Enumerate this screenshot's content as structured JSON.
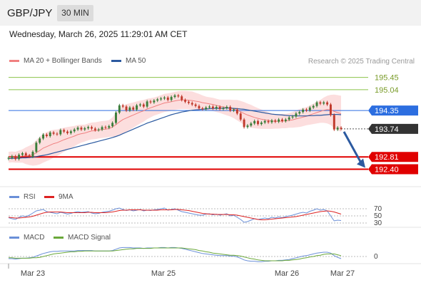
{
  "header": {
    "pair": "GBP/JPY",
    "timeframe": "30 MIN"
  },
  "datetime": "Wednesday, March 26, 2025 11:29:01 AM CET",
  "legend": {
    "ma20": "MA 20 + Bollinger Bands",
    "ma50": "MA 50",
    "credit": "Research © 2025 Trading Central"
  },
  "colors": {
    "up": "#3a7d3a",
    "down": "#c0392b",
    "ma50": "#2c5aa0",
    "ma20": "#f08080",
    "band": "#fbd3d3",
    "resistance": "#8bc34a",
    "support": "#e00000",
    "pivot": "#2c6ee0",
    "current": "#333333"
  },
  "chart_data": [
    {
      "type": "line",
      "title": "",
      "ylim": [
        192.2,
        195.7
      ],
      "x_labels": [
        "Mar 23",
        "Mar 25",
        "Mar 26",
        "Mar 27"
      ],
      "levels": [
        {
          "name": "R2",
          "value": 195.45,
          "label": "195.45",
          "kind": "resistance"
        },
        {
          "name": "R1",
          "value": 195.04,
          "label": "195.04",
          "kind": "resistance"
        },
        {
          "name": "pivot",
          "value": 194.35,
          "label": "194.35",
          "kind": "pivot"
        },
        {
          "name": "last",
          "value": 193.74,
          "label": "193.74",
          "kind": "current"
        },
        {
          "name": "S1",
          "value": 192.81,
          "label": "192.81",
          "kind": "support"
        },
        {
          "name": "S2",
          "value": 192.4,
          "label": "192.40",
          "kind": "support"
        }
      ],
      "close": [
        192.78,
        192.83,
        192.74,
        192.88,
        192.93,
        192.86,
        192.82,
        192.98,
        193.28,
        193.42,
        193.55,
        193.5,
        193.62,
        193.58,
        193.56,
        193.7,
        193.65,
        193.6,
        193.66,
        193.72,
        193.78,
        193.72,
        193.76,
        193.8,
        193.75,
        193.7,
        193.72,
        193.8,
        193.78,
        193.83,
        193.94,
        194.28,
        194.52,
        194.48,
        194.35,
        194.45,
        194.38,
        194.52,
        194.55,
        194.48,
        194.65,
        194.62,
        194.68,
        194.72,
        194.75,
        194.78,
        194.7,
        194.8,
        194.85,
        194.82,
        194.7,
        194.64,
        194.6,
        194.55,
        194.5,
        194.42,
        194.4,
        194.45,
        194.48,
        194.42,
        194.47,
        194.4,
        194.43,
        194.47,
        194.35,
        194.38,
        194.25,
        194.05,
        193.8,
        193.85,
        193.92,
        194.0,
        193.9,
        193.95,
        194.0,
        193.96,
        194.02,
        193.98,
        194.05,
        194.0,
        194.05,
        194.12,
        194.15,
        194.25,
        194.3,
        194.38,
        194.35,
        194.45,
        194.5,
        194.62,
        194.58,
        194.62,
        194.55,
        194.2,
        193.72,
        193.78,
        193.74
      ],
      "series": [
        {
          "name": "MA 20",
          "values": [
            192.8,
            192.81,
            192.8,
            192.82,
            192.84,
            192.85,
            192.86,
            192.88,
            192.95,
            193.02,
            193.1,
            193.15,
            193.2,
            193.25,
            193.28,
            193.33,
            193.38,
            193.42,
            193.46,
            193.5,
            193.55,
            193.58,
            193.6,
            193.64,
            193.67,
            193.68,
            193.7,
            193.72,
            193.73,
            193.75,
            193.8,
            193.88,
            193.97,
            194.05,
            194.1,
            194.15,
            194.2,
            194.25,
            194.3,
            194.34,
            194.4,
            194.44,
            194.48,
            194.52,
            194.56,
            194.6,
            194.62,
            194.64,
            194.67,
            194.69,
            194.7,
            194.7,
            194.69,
            194.68,
            194.66,
            194.64,
            194.61,
            194.59,
            194.57,
            194.55,
            194.52,
            194.49,
            194.47,
            194.45,
            194.43,
            194.4,
            194.36,
            194.31,
            194.25,
            194.2,
            194.16,
            194.12,
            194.09,
            194.06,
            194.04,
            194.02,
            194.0,
            193.99,
            193.99,
            194.0,
            194.0,
            194.02,
            194.04,
            194.07,
            194.1,
            194.13,
            194.16,
            194.2,
            194.24,
            194.28,
            194.32,
            194.36,
            194.38,
            194.37,
            194.32,
            194.28,
            194.24
          ]
        },
        {
          "name": "MA 50",
          "values": [
            192.76,
            192.76,
            192.77,
            192.77,
            192.78,
            192.78,
            192.79,
            192.8,
            192.82,
            192.84,
            192.86,
            192.88,
            192.91,
            192.94,
            192.97,
            193.0,
            193.03,
            193.06,
            193.09,
            193.12,
            193.15,
            193.18,
            193.21,
            193.24,
            193.27,
            193.3,
            193.33,
            193.36,
            193.39,
            193.42,
            193.45,
            193.49,
            193.53,
            193.58,
            193.63,
            193.68,
            193.73,
            193.78,
            193.83,
            193.88,
            193.93,
            193.97,
            194.01,
            194.05,
            194.09,
            194.13,
            194.17,
            194.21,
            194.24,
            194.27,
            194.3,
            194.32,
            194.34,
            194.36,
            194.37,
            194.38,
            194.39,
            194.4,
            194.41,
            194.42,
            194.42,
            194.42,
            194.43,
            194.43,
            194.43,
            194.42,
            194.41,
            194.4,
            194.39,
            194.37,
            194.35,
            194.33,
            194.31,
            194.29,
            194.27,
            194.25,
            194.23,
            194.22,
            194.21,
            194.2,
            194.19,
            194.18,
            194.18,
            194.17,
            194.17,
            194.17,
            194.17,
            194.18,
            194.18,
            194.19,
            194.19,
            194.2,
            194.21,
            194.22,
            194.22,
            194.22,
            194.21
          ]
        }
      ],
      "band_width": [
        0.18,
        0.18,
        0.18,
        0.2,
        0.22,
        0.28,
        0.32,
        0.36,
        0.42,
        0.46,
        0.48,
        0.48,
        0.48,
        0.46,
        0.44,
        0.42,
        0.4,
        0.38,
        0.36,
        0.34,
        0.32,
        0.3,
        0.28,
        0.28,
        0.28,
        0.28,
        0.28,
        0.28,
        0.28,
        0.28,
        0.32,
        0.4,
        0.44,
        0.46,
        0.46,
        0.44,
        0.42,
        0.4,
        0.38,
        0.36,
        0.34,
        0.32,
        0.3,
        0.3,
        0.3,
        0.3,
        0.3,
        0.3,
        0.3,
        0.3,
        0.3,
        0.3,
        0.3,
        0.3,
        0.28,
        0.26,
        0.24,
        0.22,
        0.22,
        0.22,
        0.22,
        0.22,
        0.24,
        0.26,
        0.28,
        0.3,
        0.34,
        0.36,
        0.38,
        0.38,
        0.38,
        0.36,
        0.34,
        0.32,
        0.3,
        0.28,
        0.26,
        0.24,
        0.24,
        0.24,
        0.24,
        0.24,
        0.26,
        0.28,
        0.3,
        0.3,
        0.3,
        0.32,
        0.34,
        0.36,
        0.38,
        0.42,
        0.46,
        0.5,
        0.56,
        0.58,
        0.6
      ],
      "forecast_arrow": {
        "from": 193.74,
        "to": 192.4
      }
    },
    {
      "type": "line",
      "name": "RSI",
      "levels": [
        "70",
        "50",
        "30"
      ],
      "series": [
        {
          "name": "RSI",
          "values": [
            45,
            42,
            40,
            46,
            50,
            48,
            52,
            58,
            64,
            66,
            68,
            62,
            60,
            58,
            56,
            60,
            58,
            55,
            57,
            60,
            62,
            60,
            61,
            62,
            58,
            56,
            57,
            60,
            62,
            63,
            66,
            70,
            72,
            68,
            65,
            67,
            64,
            66,
            68,
            64,
            66,
            65,
            67,
            68,
            70,
            72,
            66,
            68,
            70,
            66,
            62,
            60,
            58,
            56,
            54,
            52,
            52,
            55,
            56,
            53,
            55,
            52,
            54,
            56,
            50,
            52,
            46,
            40,
            32,
            34,
            38,
            42,
            40,
            42,
            44,
            42,
            46,
            44,
            47,
            45,
            48,
            50,
            52,
            55,
            58,
            60,
            58,
            63,
            66,
            70,
            66,
            68,
            64,
            50,
            36,
            38,
            37
          ]
        },
        {
          "name": "9MA",
          "values": [
            46,
            45,
            44,
            44,
            45,
            46,
            47,
            49,
            52,
            55,
            58,
            60,
            61,
            61,
            61,
            61,
            60,
            59,
            59,
            59,
            59,
            59,
            59,
            60,
            60,
            59,
            59,
            59,
            59,
            60,
            61,
            63,
            65,
            66,
            66,
            67,
            67,
            67,
            67,
            66,
            66,
            66,
            66,
            66,
            67,
            67,
            67,
            67,
            68,
            68,
            67,
            66,
            65,
            63,
            61,
            59,
            57,
            56,
            55,
            55,
            54,
            54,
            54,
            54,
            53,
            53,
            52,
            50,
            48,
            46,
            44,
            42,
            40,
            39,
            39,
            40,
            41,
            42,
            43,
            44,
            45,
            46,
            47,
            48,
            50,
            52,
            54,
            56,
            58,
            60,
            62,
            63,
            64,
            63,
            61,
            58,
            55
          ]
        }
      ]
    },
    {
      "type": "line",
      "name": "MACD",
      "levels": [
        "0"
      ],
      "series": [
        {
          "name": "MACD",
          "values": [
            -0.05,
            -0.05,
            -0.06,
            -0.05,
            -0.04,
            -0.04,
            -0.03,
            -0.02,
            0.01,
            0.04,
            0.07,
            0.09,
            0.11,
            0.12,
            0.12,
            0.13,
            0.13,
            0.13,
            0.13,
            0.13,
            0.14,
            0.14,
            0.14,
            0.14,
            0.14,
            0.13,
            0.13,
            0.13,
            0.13,
            0.13,
            0.14,
            0.17,
            0.2,
            0.21,
            0.21,
            0.21,
            0.2,
            0.2,
            0.2,
            0.19,
            0.2,
            0.2,
            0.2,
            0.2,
            0.21,
            0.21,
            0.2,
            0.21,
            0.21,
            0.2,
            0.19,
            0.17,
            0.15,
            0.13,
            0.11,
            0.09,
            0.07,
            0.06,
            0.05,
            0.04,
            0.03,
            0.02,
            0.02,
            0.02,
            0.01,
            0.01,
            -0.01,
            -0.04,
            -0.08,
            -0.1,
            -0.11,
            -0.11,
            -0.12,
            -0.12,
            -0.11,
            -0.11,
            -0.1,
            -0.1,
            -0.09,
            -0.09,
            -0.08,
            -0.07,
            -0.05,
            -0.03,
            -0.01,
            0.01,
            0.02,
            0.04,
            0.06,
            0.08,
            0.09,
            0.1,
            0.1,
            0.08,
            0.02,
            -0.02,
            -0.05
          ]
        },
        {
          "name": "MACD Signal",
          "values": [
            -0.03,
            -0.03,
            -0.04,
            -0.04,
            -0.04,
            -0.04,
            -0.04,
            -0.03,
            -0.03,
            -0.02,
            0.0,
            0.02,
            0.04,
            0.06,
            0.07,
            0.08,
            0.09,
            0.1,
            0.11,
            0.11,
            0.12,
            0.12,
            0.13,
            0.13,
            0.13,
            0.13,
            0.13,
            0.13,
            0.13,
            0.13,
            0.13,
            0.14,
            0.15,
            0.16,
            0.17,
            0.18,
            0.18,
            0.19,
            0.19,
            0.19,
            0.19,
            0.19,
            0.2,
            0.2,
            0.2,
            0.2,
            0.2,
            0.2,
            0.2,
            0.2,
            0.2,
            0.19,
            0.18,
            0.17,
            0.16,
            0.14,
            0.13,
            0.11,
            0.1,
            0.08,
            0.07,
            0.06,
            0.05,
            0.04,
            0.03,
            0.03,
            0.02,
            0.01,
            -0.01,
            -0.03,
            -0.05,
            -0.06,
            -0.08,
            -0.09,
            -0.1,
            -0.1,
            -0.1,
            -0.1,
            -0.1,
            -0.1,
            -0.09,
            -0.09,
            -0.08,
            -0.07,
            -0.06,
            -0.04,
            -0.03,
            -0.01,
            0.0,
            0.02,
            0.03,
            0.05,
            0.06,
            0.06,
            0.06,
            0.04,
            0.02
          ]
        }
      ]
    }
  ],
  "sub_legends": {
    "rsi": [
      "RSI",
      "9MA"
    ],
    "macd": [
      "MACD",
      "MACD Signal"
    ]
  }
}
